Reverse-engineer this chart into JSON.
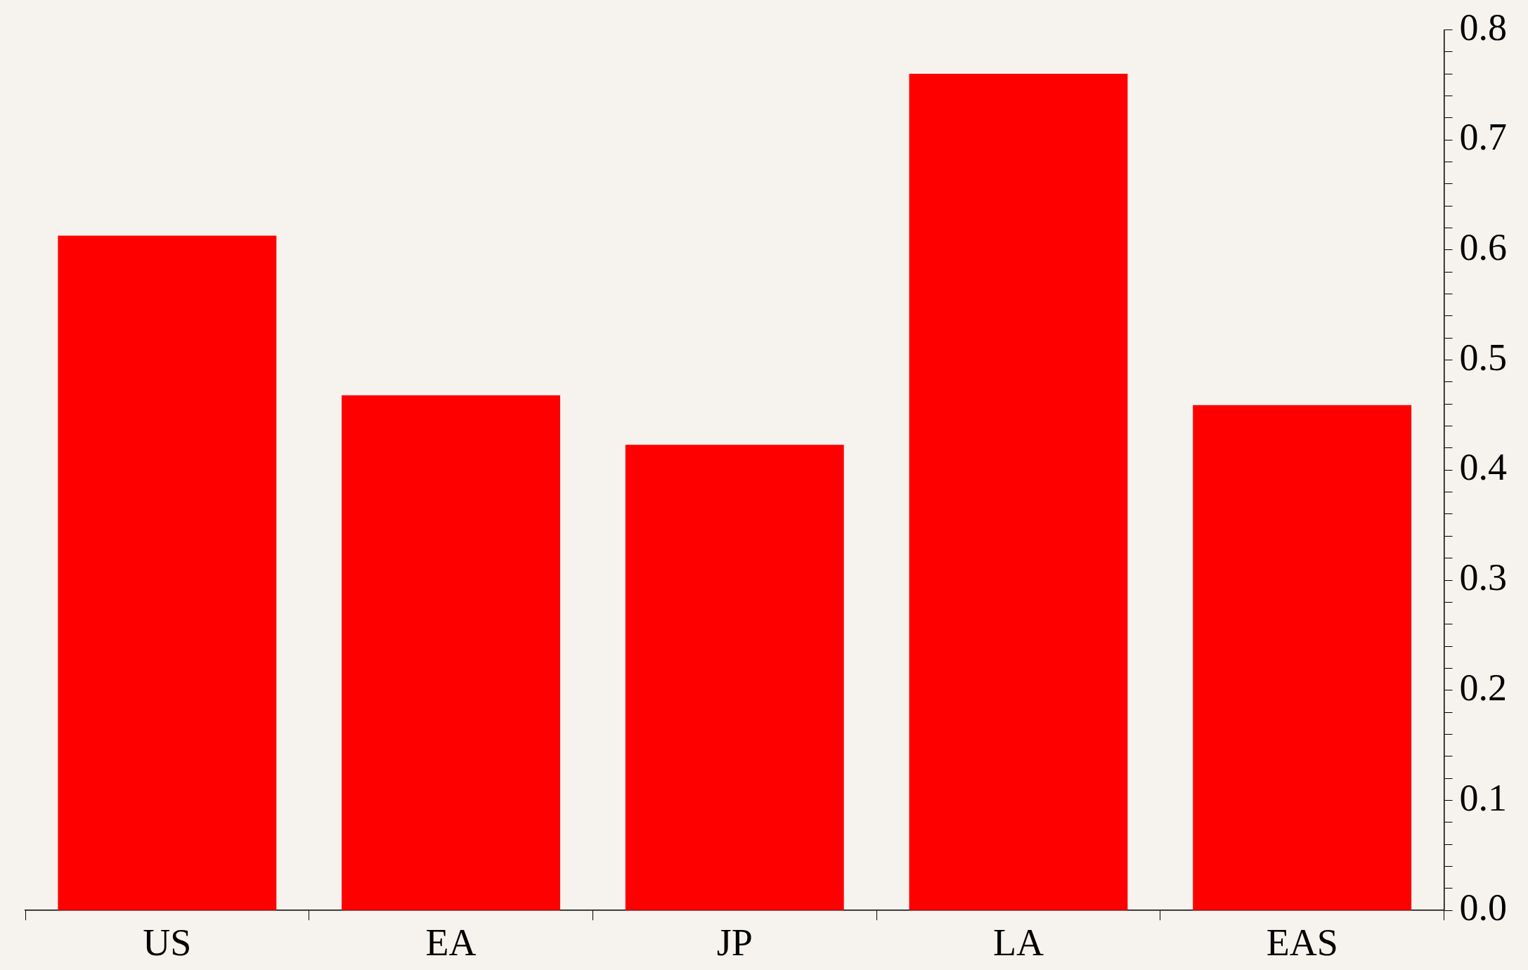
{
  "chart_data": {
    "type": "bar",
    "categories": [
      "US",
      "EA",
      "JP",
      "LA",
      "EAS"
    ],
    "values": [
      0.613,
      0.468,
      0.423,
      0.76,
      0.459
    ],
    "color": "#ff0000",
    "ylim": [
      0,
      0.8
    ],
    "yticks": [
      {
        "value": 0,
        "label": "0.0"
      },
      {
        "value": 0.02,
        "label": null
      },
      {
        "value": 0.04,
        "label": null
      },
      {
        "value": 0.06,
        "label": null
      },
      {
        "value": 0.08,
        "label": null
      },
      {
        "value": 0.1,
        "label": "0.1"
      },
      {
        "value": 0.12,
        "label": null
      },
      {
        "value": 0.14,
        "label": null
      },
      {
        "value": 0.16,
        "label": null
      },
      {
        "value": 0.18,
        "label": null
      },
      {
        "value": 0.2,
        "label": "0.2"
      },
      {
        "value": 0.22,
        "label": null
      },
      {
        "value": 0.24,
        "label": null
      },
      {
        "value": 0.26,
        "label": null
      },
      {
        "value": 0.28,
        "label": null
      },
      {
        "value": 0.3,
        "label": "0.3"
      },
      {
        "value": 0.32,
        "label": null
      },
      {
        "value": 0.34,
        "label": null
      },
      {
        "value": 0.36,
        "label": null
      },
      {
        "value": 0.38,
        "label": null
      },
      {
        "value": 0.4,
        "label": "0.4"
      },
      {
        "value": 0.42,
        "label": null
      },
      {
        "value": 0.44,
        "label": null
      },
      {
        "value": 0.46,
        "label": null
      },
      {
        "value": 0.48,
        "label": null
      },
      {
        "value": 0.5,
        "label": "0.5"
      },
      {
        "value": 0.52,
        "label": null
      },
      {
        "value": 0.54,
        "label": null
      },
      {
        "value": 0.56,
        "label": null
      },
      {
        "value": 0.58,
        "label": null
      },
      {
        "value": 0.6,
        "label": "0.6"
      },
      {
        "value": 0.62,
        "label": null
      },
      {
        "value": 0.64,
        "label": null
      },
      {
        "value": 0.66,
        "label": null
      },
      {
        "value": 0.68,
        "label": null
      },
      {
        "value": 0.7,
        "label": "0.7"
      },
      {
        "value": 0.72,
        "label": null
      },
      {
        "value": 0.74,
        "label": null
      },
      {
        "value": 0.76,
        "label": null
      },
      {
        "value": 0.78,
        "label": null
      },
      {
        "value": 0.8,
        "label": "0.8"
      }
    ]
  }
}
